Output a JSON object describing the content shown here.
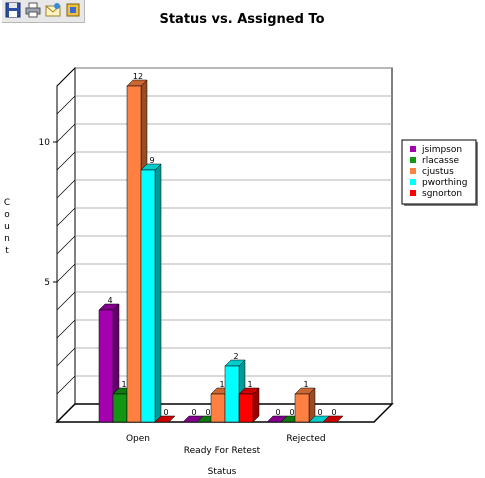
{
  "toolbar": {
    "buttons": [
      {
        "name": "save-icon"
      },
      {
        "name": "print-icon"
      },
      {
        "name": "email-icon"
      },
      {
        "name": "export-icon"
      }
    ]
  },
  "chart_data": {
    "type": "bar",
    "title": "Status vs. Assigned To",
    "xlabel": "Status",
    "ylabel": "Count",
    "categories": [
      "Open",
      "Ready For Retest",
      "Rejected"
    ],
    "yticks": [
      5,
      10
    ],
    "ylim": [
      0,
      12
    ],
    "grid": true,
    "three_d": true,
    "legend_position": "right",
    "series": [
      {
        "name": "jsimpson",
        "color": "#a400b0",
        "values": [
          4,
          0,
          0
        ]
      },
      {
        "name": "rlacasse",
        "color": "#149614",
        "values": [
          1,
          0,
          0
        ]
      },
      {
        "name": "cjustus",
        "color": "#ff8040",
        "values": [
          12,
          1,
          1
        ]
      },
      {
        "name": "pworthing",
        "color": "#00ffff",
        "values": [
          9,
          2,
          0
        ]
      },
      {
        "name": "sgnorton",
        "color": "#ff0000",
        "values": [
          0,
          1,
          0
        ]
      }
    ]
  }
}
